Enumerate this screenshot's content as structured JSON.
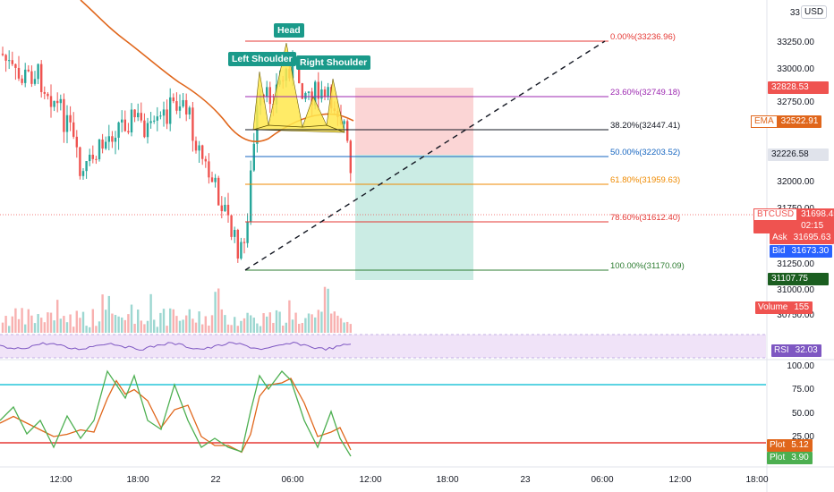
{
  "symbol": "BTCUSD",
  "currency_button": "USD",
  "price_axis": {
    "top_partial": "33",
    "ticks": [
      "33250.00",
      "33000.00",
      "32750.00",
      "32000.00",
      "31750.00",
      "31250.00",
      "31000.00",
      "30750.00"
    ]
  },
  "price_tags": {
    "tag_32828": "32828.53",
    "ema_name": "EMA",
    "ema_value": "32522.91",
    "tag_32226": "32226.58",
    "last_name": "BTCUSD",
    "last_value": "31698.45",
    "countdown": "02:15",
    "ask_name": "Ask",
    "ask_value": "31695.63",
    "bid_name": "Bid",
    "bid_value": "31673.30",
    "tag_31107": "31107.75",
    "volume_name": "Volume",
    "volume_value": "155",
    "rsi_name": "RSI",
    "rsi_value": "32.03",
    "plot1_name": "Plot",
    "plot1_value": "5.12",
    "plot2_name": "Plot",
    "plot2_value": "3.90"
  },
  "fib_levels": [
    {
      "label": "0.00%(33236.96)",
      "color": "#e53935"
    },
    {
      "label": "23.60%(32749.18)",
      "color": "#9c27b0"
    },
    {
      "label": "38.20%(32447.41)",
      "color": "#131722"
    },
    {
      "label": "50.00%(32203.52)",
      "color": "#1565c0"
    },
    {
      "label": "61.80%(31959.63)",
      "color": "#ef8a00"
    },
    {
      "label": "78.60%(31612.40)",
      "color": "#e53935"
    },
    {
      "label": "100.00%(31170.09)",
      "color": "#2e7d32"
    }
  ],
  "pattern_labels": {
    "head": "Head",
    "left_shoulder": "Left Shoulder",
    "right_shoulder": "Right Shoulder"
  },
  "stoch_axis": [
    "100.00",
    "75.00",
    "50.00",
    "25.00"
  ],
  "time_axis": [
    "12:00",
    "18:00",
    "22",
    "06:00",
    "12:00",
    "18:00",
    "23",
    "06:00",
    "12:00",
    "18:00"
  ],
  "colors": {
    "up": "#26a69a",
    "down": "#ef5350",
    "ema": "#e0661b",
    "stoch_k": "#4caf50",
    "stoch_d": "#e0661b",
    "rsi": "#7e57c2",
    "accent": "#2962ff"
  }
}
